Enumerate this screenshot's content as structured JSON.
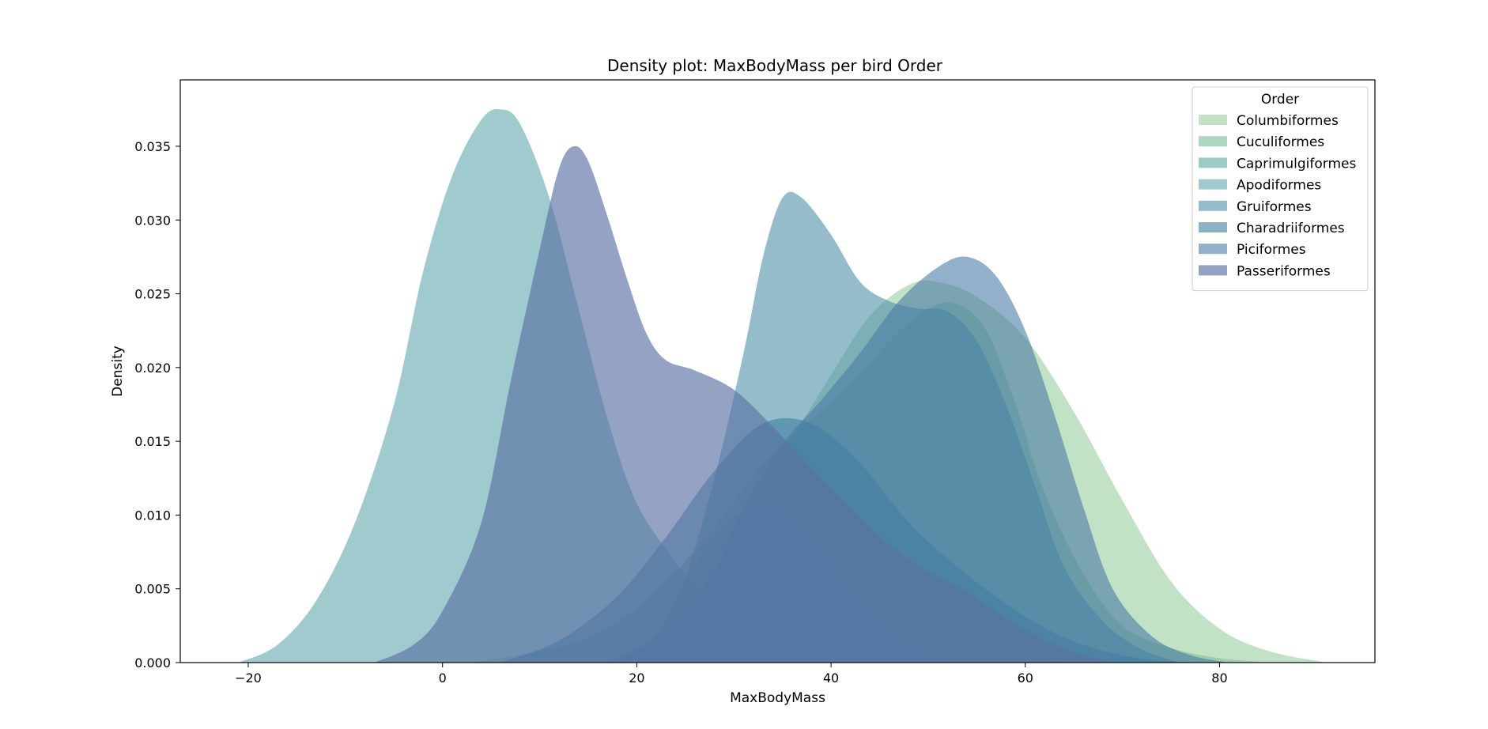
{
  "chart_data": {
    "type": "area",
    "title": "Density plot: MaxBodyMass per bird Order",
    "xlabel": "MaxBodyMass",
    "ylabel": "Density",
    "xlim": [
      -27,
      96
    ],
    "ylim": [
      0,
      0.0395
    ],
    "xticks": [
      -20,
      0,
      20,
      40,
      60,
      80
    ],
    "xtick_labels": [
      "−20",
      "0",
      "20",
      "40",
      "60",
      "80"
    ],
    "yticks": [
      0.0,
      0.005,
      0.01,
      0.015,
      0.02,
      0.025,
      0.03,
      0.035
    ],
    "ytick_labels": [
      "0.000",
      "0.005",
      "0.010",
      "0.015",
      "0.020",
      "0.025",
      "0.030",
      "0.035"
    ],
    "grid": false,
    "legend": {
      "title": "Order",
      "placement": "top-right"
    },
    "series": [
      {
        "name": "Columbiformes",
        "color": "#a8d5ae",
        "opacity": 0.7,
        "points": [
          [
            7,
            0
          ],
          [
            12,
            0.0008
          ],
          [
            18,
            0.002
          ],
          [
            24,
            0.0048
          ],
          [
            30,
            0.0095
          ],
          [
            35,
            0.0142
          ],
          [
            40,
            0.0195
          ],
          [
            44,
            0.0235
          ],
          [
            48,
            0.0256
          ],
          [
            51,
            0.0258
          ],
          [
            55,
            0.0248
          ],
          [
            60,
            0.022
          ],
          [
            65,
            0.017
          ],
          [
            70,
            0.011
          ],
          [
            75,
            0.0055
          ],
          [
            80,
            0.0023
          ],
          [
            85,
            0.0008
          ],
          [
            91,
            0
          ]
        ]
      },
      {
        "name": "Cuculiformes",
        "color": "#8cc5a3",
        "opacity": 0.7,
        "points": [
          [
            3,
            0
          ],
          [
            10,
            0.0008
          ],
          [
            16,
            0.002
          ],
          [
            22,
            0.0048
          ],
          [
            28,
            0.0092
          ],
          [
            33,
            0.0135
          ],
          [
            38,
            0.0165
          ],
          [
            42,
            0.0188
          ],
          [
            46,
            0.0218
          ],
          [
            50,
            0.024
          ],
          [
            53,
            0.0243
          ],
          [
            56,
            0.0225
          ],
          [
            59,
            0.0175
          ],
          [
            62,
            0.0115
          ],
          [
            66,
            0.006
          ],
          [
            70,
            0.0025
          ],
          [
            75,
            0.001
          ],
          [
            80,
            0.0003
          ],
          [
            85,
            0
          ]
        ]
      },
      {
        "name": "Caprimulgiformes",
        "color": "#70b5ac",
        "opacity": 0.7,
        "points": [
          [
            16,
            0
          ],
          [
            20,
            0.0012
          ],
          [
            24,
            0.0045
          ],
          [
            28,
            0.0085
          ],
          [
            31,
            0.0103
          ],
          [
            34,
            0.0103
          ],
          [
            37,
            0.0088
          ],
          [
            40,
            0.0065
          ],
          [
            44,
            0.0035
          ],
          [
            48,
            0.0012
          ],
          [
            52,
            0.0002
          ],
          [
            55,
            0
          ]
        ]
      },
      {
        "name": "Apodiformes",
        "color": "#5fa7ad",
        "opacity": 0.6,
        "points": [
          [
            -21,
            0
          ],
          [
            -17,
            0.0012
          ],
          [
            -13,
            0.0042
          ],
          [
            -9,
            0.0095
          ],
          [
            -5,
            0.0175
          ],
          [
            -2,
            0.0265
          ],
          [
            1,
            0.033
          ],
          [
            4,
            0.0368
          ],
          [
            6,
            0.0375
          ],
          [
            8,
            0.0365
          ],
          [
            11,
            0.0315
          ],
          [
            14,
            0.024
          ],
          [
            17,
            0.0165
          ],
          [
            20,
            0.0108
          ],
          [
            24,
            0.0068
          ],
          [
            28,
            0.0035
          ],
          [
            32,
            0.0012
          ],
          [
            36,
            0
          ]
        ]
      },
      {
        "name": "Gruiformes",
        "color": "#4c90a8",
        "opacity": 0.6,
        "points": [
          [
            18,
            0
          ],
          [
            22,
            0.0018
          ],
          [
            25,
            0.0058
          ],
          [
            28,
            0.0125
          ],
          [
            31,
            0.021
          ],
          [
            33,
            0.0275
          ],
          [
            35,
            0.0315
          ],
          [
            37,
            0.0315
          ],
          [
            40,
            0.029
          ],
          [
            43,
            0.0258
          ],
          [
            46,
            0.0245
          ],
          [
            49,
            0.024
          ],
          [
            52,
            0.0238
          ],
          [
            55,
            0.0218
          ],
          [
            58,
            0.0175
          ],
          [
            61,
            0.012
          ],
          [
            64,
            0.0065
          ],
          [
            68,
            0.0028
          ],
          [
            72,
            0.0009
          ],
          [
            76,
            0
          ]
        ]
      },
      {
        "name": "Charadriiformes",
        "color": "#3d7fa0",
        "opacity": 0.6,
        "points": [
          [
            6,
            0
          ],
          [
            12,
            0.0015
          ],
          [
            18,
            0.0045
          ],
          [
            23,
            0.0085
          ],
          [
            28,
            0.013
          ],
          [
            33,
            0.0162
          ],
          [
            38,
            0.0162
          ],
          [
            43,
            0.0135
          ],
          [
            48,
            0.0095
          ],
          [
            53,
            0.0065
          ],
          [
            58,
            0.004
          ],
          [
            63,
            0.002
          ],
          [
            68,
            0.0008
          ],
          [
            73,
            0.0002
          ],
          [
            78,
            0
          ]
        ]
      },
      {
        "name": "Piciformes",
        "color": "#4a7ca5",
        "opacity": 0.6,
        "points": [
          [
            17,
            0
          ],
          [
            20,
            0.0009
          ],
          [
            24,
            0.0028
          ],
          [
            28,
            0.0062
          ],
          [
            31,
            0.0105
          ],
          [
            35,
            0.0148
          ],
          [
            39,
            0.0178
          ],
          [
            43,
            0.021
          ],
          [
            47,
            0.0245
          ],
          [
            51,
            0.0268
          ],
          [
            54,
            0.0275
          ],
          [
            57,
            0.0262
          ],
          [
            60,
            0.0225
          ],
          [
            63,
            0.0168
          ],
          [
            66,
            0.0105
          ],
          [
            69,
            0.005
          ],
          [
            73,
            0.0018
          ],
          [
            77,
            0.0005
          ],
          [
            81,
            0
          ]
        ]
      },
      {
        "name": "Passeriformes",
        "color": "#5a72a3",
        "opacity": 0.65,
        "points": [
          [
            -7,
            0
          ],
          [
            -3,
            0.0012
          ],
          [
            0,
            0.0035
          ],
          [
            4,
            0.0095
          ],
          [
            7,
            0.019
          ],
          [
            10,
            0.028
          ],
          [
            12,
            0.0335
          ],
          [
            13.5,
            0.035
          ],
          [
            15,
            0.034
          ],
          [
            17,
            0.0302
          ],
          [
            19,
            0.026
          ],
          [
            21,
            0.0223
          ],
          [
            23,
            0.0205
          ],
          [
            26,
            0.0198
          ],
          [
            30,
            0.0185
          ],
          [
            34,
            0.016
          ],
          [
            38,
            0.0132
          ],
          [
            42,
            0.0105
          ],
          [
            46,
            0.008
          ],
          [
            50,
            0.0062
          ],
          [
            54,
            0.0048
          ],
          [
            58,
            0.003
          ],
          [
            62,
            0.0015
          ],
          [
            66,
            0.0005
          ],
          [
            70,
            0
          ]
        ]
      }
    ]
  }
}
